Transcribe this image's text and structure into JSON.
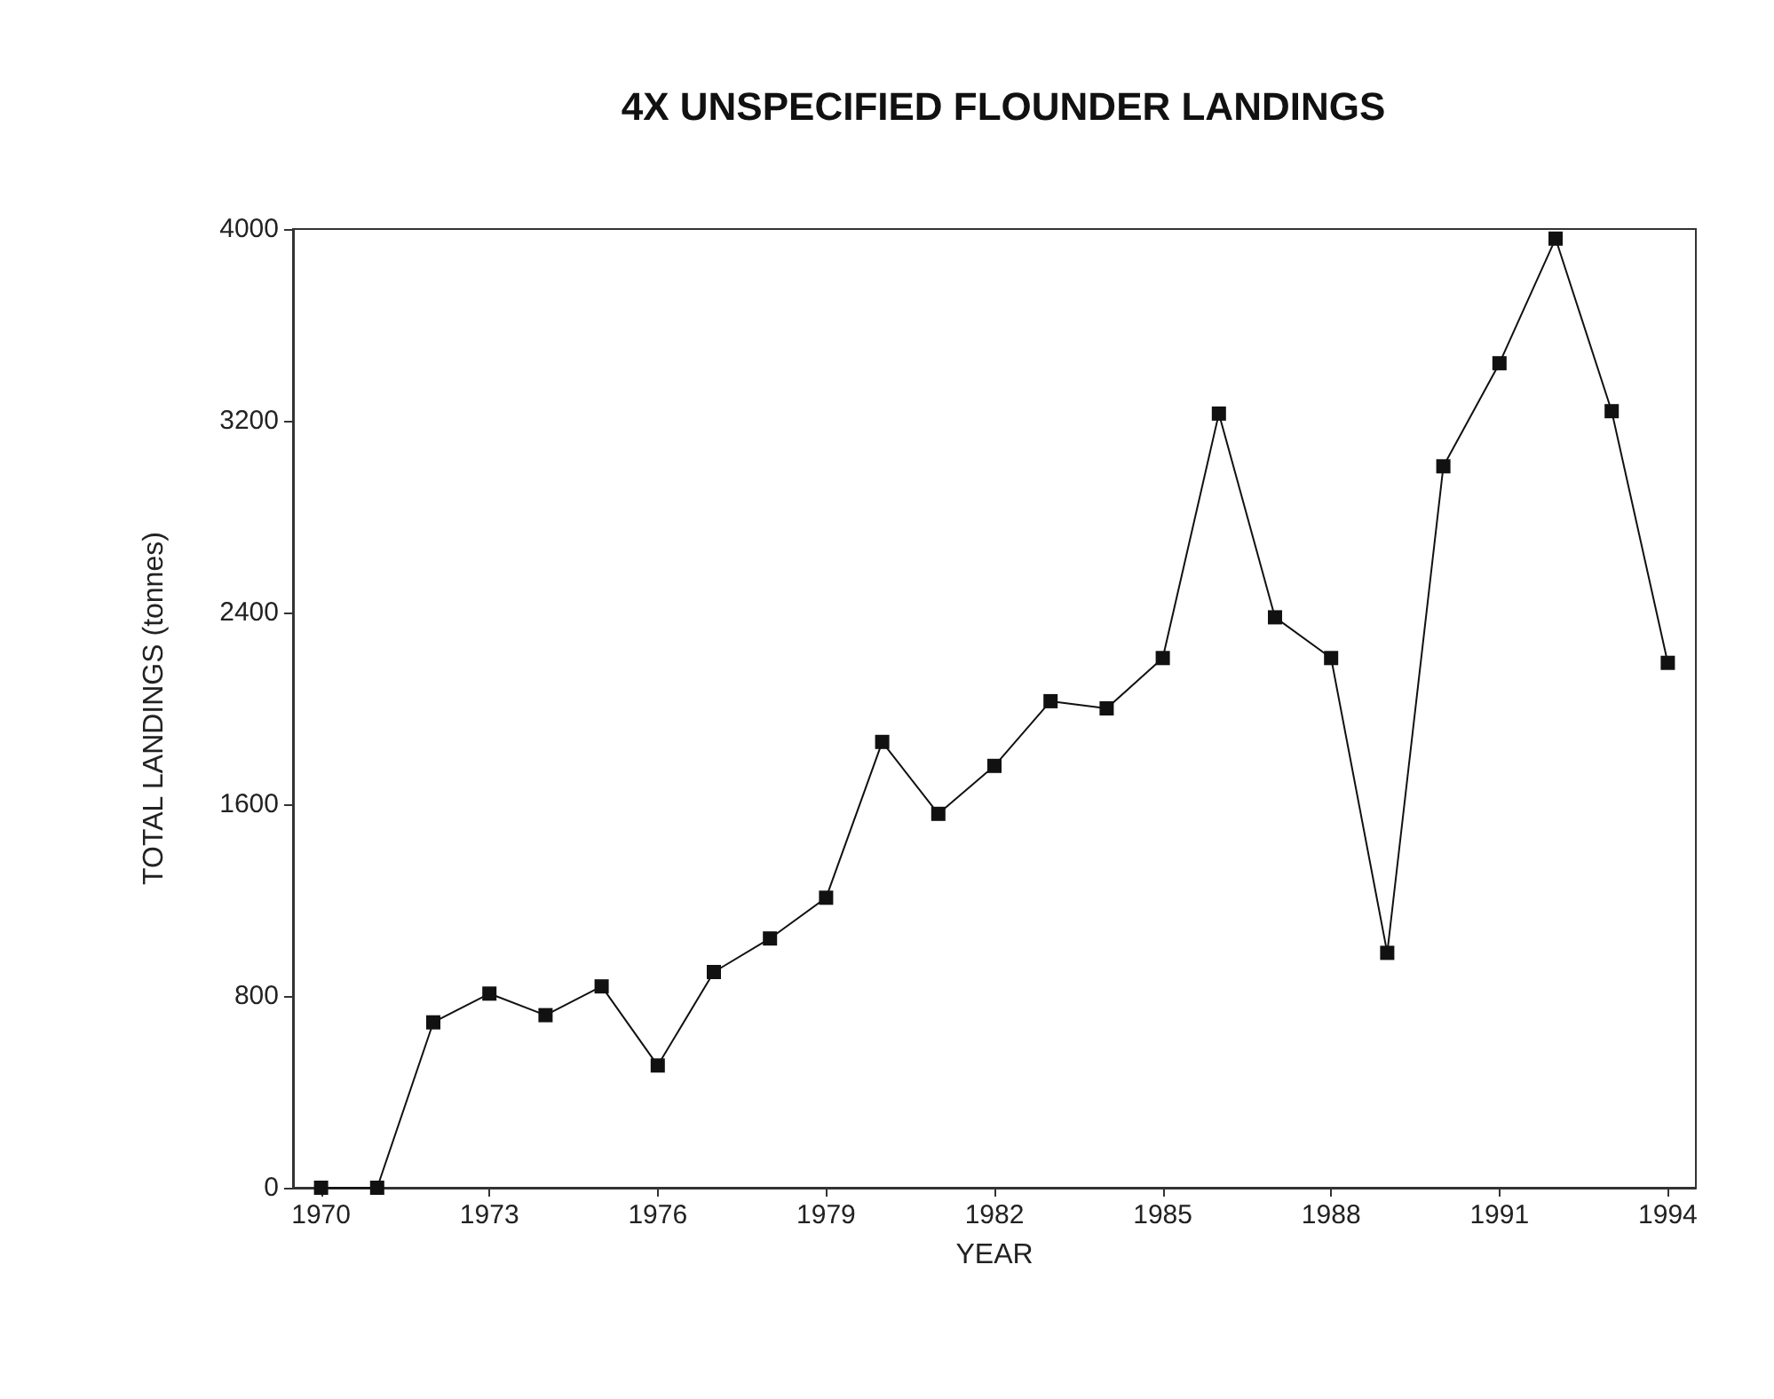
{
  "chart_data": {
    "type": "line",
    "title": "4X UNSPECIFIED FLOUNDER LANDINGS",
    "xlabel": "YEAR",
    "ylabel": "TOTAL LANDINGS (tonnes)",
    "x": [
      1970,
      1971,
      1972,
      1973,
      1974,
      1975,
      1976,
      1977,
      1978,
      1979,
      1980,
      1981,
      1982,
      1983,
      1984,
      1985,
      1986,
      1987,
      1988,
      1989,
      1990,
      1991,
      1992,
      1993,
      1994
    ],
    "series": [
      {
        "color": "#111111",
        "values": [
          0,
          0,
          690,
          810,
          720,
          840,
          510,
          900,
          1040,
          1210,
          1860,
          1560,
          1760,
          2030,
          2000,
          2210,
          3230,
          2380,
          2210,
          980,
          3010,
          3440,
          3960,
          3240,
          2190
        ]
      }
    ],
    "xlim": [
      1969.5,
      1994.5
    ],
    "xticks": [
      1970,
      1973,
      1976,
      1979,
      1982,
      1985,
      1988,
      1991,
      1994
    ],
    "ylim": [
      0,
      4000
    ],
    "yticks": [
      0,
      800,
      1600,
      2400,
      3200,
      4000
    ],
    "marker": "square",
    "line_style": "solid"
  }
}
